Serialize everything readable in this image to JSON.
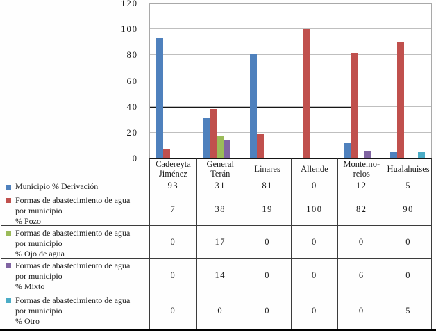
{
  "chart_data": {
    "type": "bar",
    "title": "",
    "xlabel": "",
    "ylabel": "",
    "categories": [
      "Cadereyta Jiménez",
      "General Terán",
      "Linares",
      "Allende",
      "Montemorelos",
      "Hualahuises"
    ],
    "series": [
      {
        "name": "Municipio % Derivación",
        "color": "#4f81bd",
        "values": [
          93,
          31,
          81,
          0,
          12,
          5
        ]
      },
      {
        "name": "Formas de abastecimiento de agua por municipio % Pozo",
        "color": "#c0504d",
        "values": [
          7,
          38,
          19,
          100,
          82,
          90
        ]
      },
      {
        "name": "Formas de abastecimiento de agua por municipio % Ojo de agua",
        "color": "#9bbb59",
        "values": [
          0,
          17,
          0,
          0,
          0,
          0
        ]
      },
      {
        "name": "Formas de abastecimiento de agua por municipio % Mixto",
        "color": "#8064a2",
        "values": [
          0,
          14,
          0,
          0,
          6,
          0
        ]
      },
      {
        "name": "Formas de abastecimiento de agua por municipio % Otro",
        "color": "#4bacc6",
        "values": [
          0,
          0,
          0,
          0,
          0,
          5
        ]
      }
    ],
    "ylim": [
      0,
      120
    ],
    "ytick_interval": 20,
    "yticks": [
      0,
      20,
      40,
      60,
      80,
      100,
      120
    ],
    "grid": true,
    "legend_position": "data-table-below-chart"
  },
  "table": {
    "category_lines": [
      [
        "Cadereyta",
        "Jiménez"
      ],
      [
        "General",
        "Terán"
      ],
      [
        "Linares"
      ],
      [
        "Allende"
      ],
      [
        "Montemo-",
        "relos"
      ],
      [
        "Hualahuises"
      ]
    ],
    "series_label_lines": [
      [
        "Municipio % Derivación"
      ],
      [
        "Formas de abastecimiento de agua",
        "por municipio",
        "% Pozo"
      ],
      [
        "Formas de abastecimiento de agua",
        "por municipio",
        "% Ojo de agua"
      ],
      [
        "Formas de abastecimiento de agua",
        "por municipio",
        "% Mixto"
      ],
      [
        "Formas de abastecimiento de agua",
        "por municipio",
        "% Otro"
      ]
    ]
  }
}
